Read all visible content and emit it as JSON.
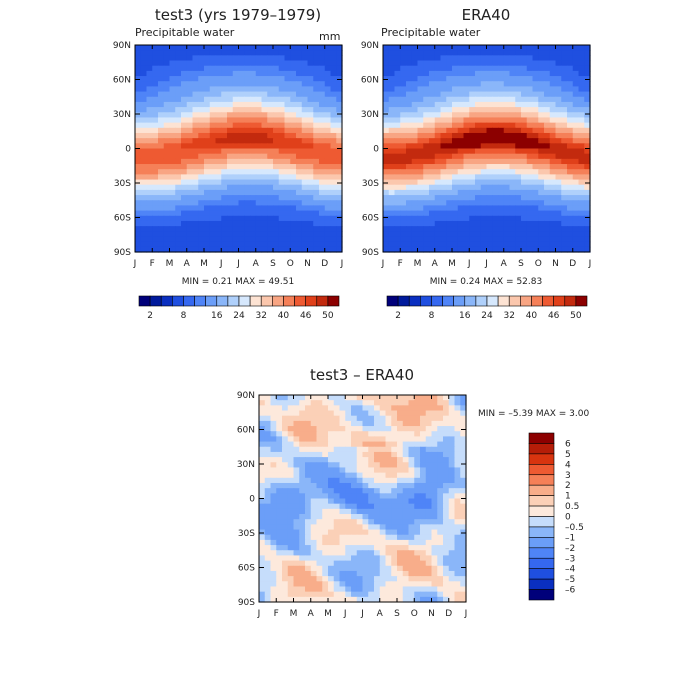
{
  "chart_data": [
    {
      "type": "heatmap",
      "title": "test3 (yrs 1979–1979)",
      "subtitle": "Precipitable water",
      "units": "mm",
      "x_ticks": [
        "J",
        "F",
        "M",
        "A",
        "M",
        "J",
        "J",
        "A",
        "S",
        "O",
        "N",
        "D",
        "J"
      ],
      "y_ticks": [
        "90N",
        "60N",
        "30N",
        "0",
        "30S",
        "60S",
        "90S"
      ],
      "stats_text": "MIN =    0.21 MAX =   49.51",
      "min": 0.21,
      "max": 49.51,
      "colorbar_labels": [
        "2",
        "8",
        "16",
        "24",
        "32",
        "40",
        "46",
        "50"
      ],
      "levels": [
        2,
        4,
        6,
        8,
        10,
        12,
        16,
        20,
        24,
        28,
        32,
        36,
        40,
        44,
        46,
        48,
        50
      ],
      "colors": [
        "#00007a",
        "#001a9c",
        "#0a2fc0",
        "#1f4fe0",
        "#3568f0",
        "#4f84f7",
        "#6b9ef8",
        "#8ab6f9",
        "#afd0fb",
        "#d6e8fd",
        "#fde3d3",
        "#fbc7ad",
        "#f8a583",
        "#f58058",
        "#ee5a32",
        "#e0401a",
        "#c32a0e",
        "#8c0000"
      ]
    },
    {
      "type": "heatmap",
      "title": "ERA40",
      "subtitle": "Precipitable water",
      "x_ticks": [
        "J",
        "F",
        "M",
        "A",
        "M",
        "J",
        "J",
        "A",
        "S",
        "O",
        "N",
        "D",
        "J"
      ],
      "y_ticks": [
        "90N",
        "60N",
        "30N",
        "0",
        "30S",
        "60S",
        "90S"
      ],
      "stats_text": "MIN =    0.24 MAX =   52.83",
      "min": 0.24,
      "max": 52.83,
      "colorbar_labels": [
        "2",
        "8",
        "16",
        "24",
        "32",
        "40",
        "46",
        "50"
      ],
      "levels": [
        2,
        4,
        6,
        8,
        10,
        12,
        16,
        20,
        24,
        28,
        32,
        36,
        40,
        44,
        46,
        48,
        50
      ],
      "colors": [
        "#00007a",
        "#001a9c",
        "#0a2fc0",
        "#1f4fe0",
        "#3568f0",
        "#4f84f7",
        "#6b9ef8",
        "#8ab6f9",
        "#afd0fb",
        "#d6e8fd",
        "#fde3d3",
        "#fbc7ad",
        "#f8a583",
        "#f58058",
        "#ee5a32",
        "#e0401a",
        "#c32a0e",
        "#8c0000"
      ]
    },
    {
      "type": "heatmap",
      "title": "test3 – ERA40",
      "x_ticks": [
        "J",
        "F",
        "M",
        "A",
        "M",
        "J",
        "J",
        "A",
        "S",
        "O",
        "N",
        "D",
        "J"
      ],
      "y_ticks": [
        "90N",
        "60N",
        "30N",
        "0",
        "30S",
        "60S",
        "90S"
      ],
      "stats_text": "MIN =   –5.39 MAX =    3.00",
      "min": -5.39,
      "max": 3.0,
      "colorbar_labels": [
        "6",
        "5",
        "4",
        "3",
        "2",
        "1",
        "0.5",
        "0",
        "–0.5",
        "–1",
        "–2",
        "–3",
        "–4",
        "–5",
        "–6"
      ],
      "levels": [
        -6,
        -5,
        -4,
        -3,
        -2,
        -1,
        -0.5,
        0,
        0.5,
        1,
        2,
        3,
        4,
        5,
        6
      ],
      "colors": [
        "#00007a",
        "#0a2fc0",
        "#1f4fe0",
        "#3568f0",
        "#4f84f7",
        "#6b9ef8",
        "#8ab6f9",
        "#c6ddfb",
        "#fde9dc",
        "#fbd0b7",
        "#f8ad8a",
        "#f58058",
        "#ee5a32",
        "#d8340f",
        "#b51d08",
        "#8c0000"
      ]
    }
  ]
}
